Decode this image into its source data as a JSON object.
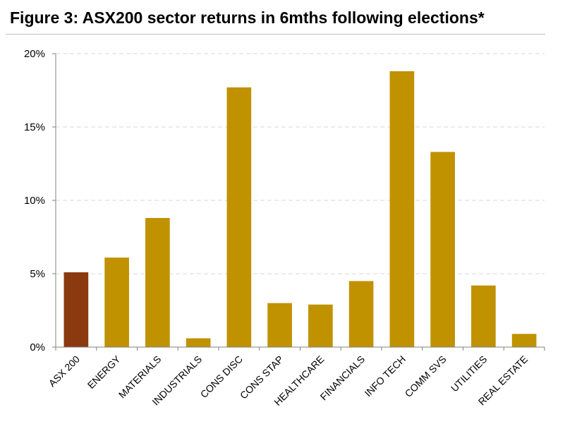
{
  "chart_data": {
    "type": "bar",
    "title": "Figure 3: ASX200 sector returns in 6mths following elections*",
    "categories": [
      "ASX 200",
      "ENERGY",
      "MATERIALS",
      "INDUSTRIALS",
      "CONS DISC",
      "CONS STAP",
      "HEALTHCARE",
      "FINANCIALS",
      "INFO TECH",
      "COMM SVS",
      "UTILITIES",
      "REAL ESTATE"
    ],
    "values": [
      5.1,
      6.1,
      8.8,
      0.6,
      17.7,
      3.0,
      2.9,
      4.5,
      18.8,
      13.3,
      4.2,
      0.9
    ],
    "ylim": [
      0,
      20
    ],
    "yticks": [
      0,
      5,
      10,
      15,
      20
    ],
    "ytick_labels": [
      "0%",
      "5%",
      "10%",
      "15%",
      "20%"
    ],
    "xlabel": "",
    "ylabel": "",
    "grid": "horizontal dashed",
    "legend": "none",
    "colors": {
      "highlight": "#8B3A0F",
      "bar": "#C09200",
      "axis": "#808080",
      "grid": "#d9d9d9"
    }
  }
}
